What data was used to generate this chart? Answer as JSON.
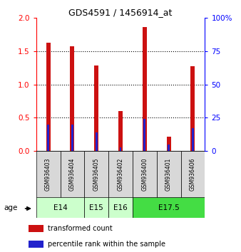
{
  "title": "GDS4591 / 1456914_at",
  "samples": [
    "GSM936403",
    "GSM936404",
    "GSM936405",
    "GSM936402",
    "GSM936400",
    "GSM936401",
    "GSM936406"
  ],
  "transformed_count": [
    1.62,
    1.57,
    1.28,
    0.6,
    1.86,
    0.22,
    1.27
  ],
  "percentile_rank": [
    0.4,
    0.4,
    0.28,
    0.06,
    0.48,
    0.1,
    0.35
  ],
  "age_groups": [
    {
      "label": "E14",
      "samples": [
        0,
        1
      ],
      "color": "#ccffcc"
    },
    {
      "label": "E15",
      "samples": [
        2
      ],
      "color": "#ccffcc"
    },
    {
      "label": "E16",
      "samples": [
        3
      ],
      "color": "#ccffcc"
    },
    {
      "label": "E17.5",
      "samples": [
        4,
        5,
        6
      ],
      "color": "#44dd44"
    }
  ],
  "ylim_left": [
    0,
    2
  ],
  "ylim_right": [
    0,
    100
  ],
  "yticks_left": [
    0,
    0.5,
    1.0,
    1.5,
    2.0
  ],
  "yticks_right": [
    0,
    25,
    50,
    75,
    100
  ],
  "bar_color_red": "#cc1111",
  "bar_color_blue": "#2222cc",
  "red_bar_width": 0.18,
  "blue_bar_width": 0.08,
  "bg_color": "#ffffff",
  "panel_bg": "#d8d8d8",
  "legend_red_label": "transformed count",
  "legend_blue_label": "percentile rank within the sample"
}
